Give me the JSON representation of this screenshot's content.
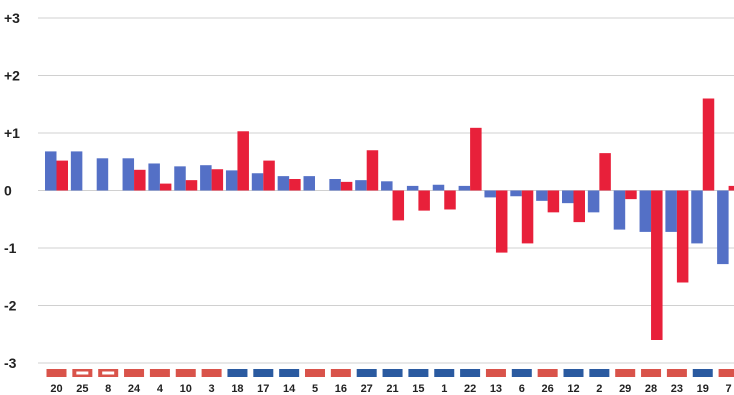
{
  "chart_data": {
    "type": "bar",
    "title": "",
    "xlabel": "",
    "ylabel": "",
    "ylim": [
      -3,
      3
    ],
    "yticks": [
      {
        "value": 3,
        "label": "+3"
      },
      {
        "value": 2,
        "label": "+2"
      },
      {
        "value": 1,
        "label": "+1"
      },
      {
        "value": 0,
        "label": "0"
      },
      {
        "value": -1,
        "label": "-1"
      },
      {
        "value": -2,
        "label": "-2"
      },
      {
        "value": -3,
        "label": "-3"
      }
    ],
    "grid": true,
    "categories": [
      "20",
      "25",
      "8",
      "24",
      "4",
      "10",
      "3",
      "18",
      "17",
      "14",
      "5",
      "16",
      "27",
      "21",
      "15",
      "1",
      "22",
      "13",
      "6",
      "26",
      "12",
      "2",
      "29",
      "28",
      "23",
      "19",
      "7"
    ],
    "category_markers": [
      "red",
      "red-outline",
      "red-outline",
      "red",
      "red",
      "red",
      "red",
      "blue",
      "blue",
      "blue",
      "red",
      "red",
      "blue",
      "blue",
      "blue",
      "blue",
      "blue",
      "red",
      "blue",
      "red",
      "blue",
      "blue",
      "red",
      "red",
      "red",
      "blue",
      "red"
    ],
    "colors": {
      "blue": "#5470c6",
      "red": "#e8203a",
      "marker_red": "#d9534a",
      "marker_blue": "#2a5aa0",
      "grid": "#d0d0d0",
      "text": "#222222"
    },
    "series": [
      {
        "color": "blue",
        "values": [
          0.68,
          0.68,
          0.56,
          0.56,
          0.47,
          0.42,
          0.44,
          0.35,
          0.3,
          0.25,
          0.25,
          0.2,
          0.18,
          0.16,
          0.08,
          0.1,
          0.08,
          -0.12,
          -0.1,
          -0.18,
          -0.22,
          -0.38,
          -0.68,
          -0.72,
          -0.72,
          -0.92,
          -1.28
        ]
      },
      {
        "color": "red",
        "values": [
          0.52,
          null,
          null,
          0.36,
          0.12,
          0.18,
          0.37,
          1.03,
          0.52,
          0.2,
          null,
          0.15,
          0.7,
          -0.52,
          -0.35,
          -0.33,
          1.09,
          -1.08,
          -0.92,
          -0.38,
          -0.55,
          0.65,
          -0.15,
          -2.6,
          -1.6,
          1.6,
          0.08
        ]
      }
    ]
  }
}
